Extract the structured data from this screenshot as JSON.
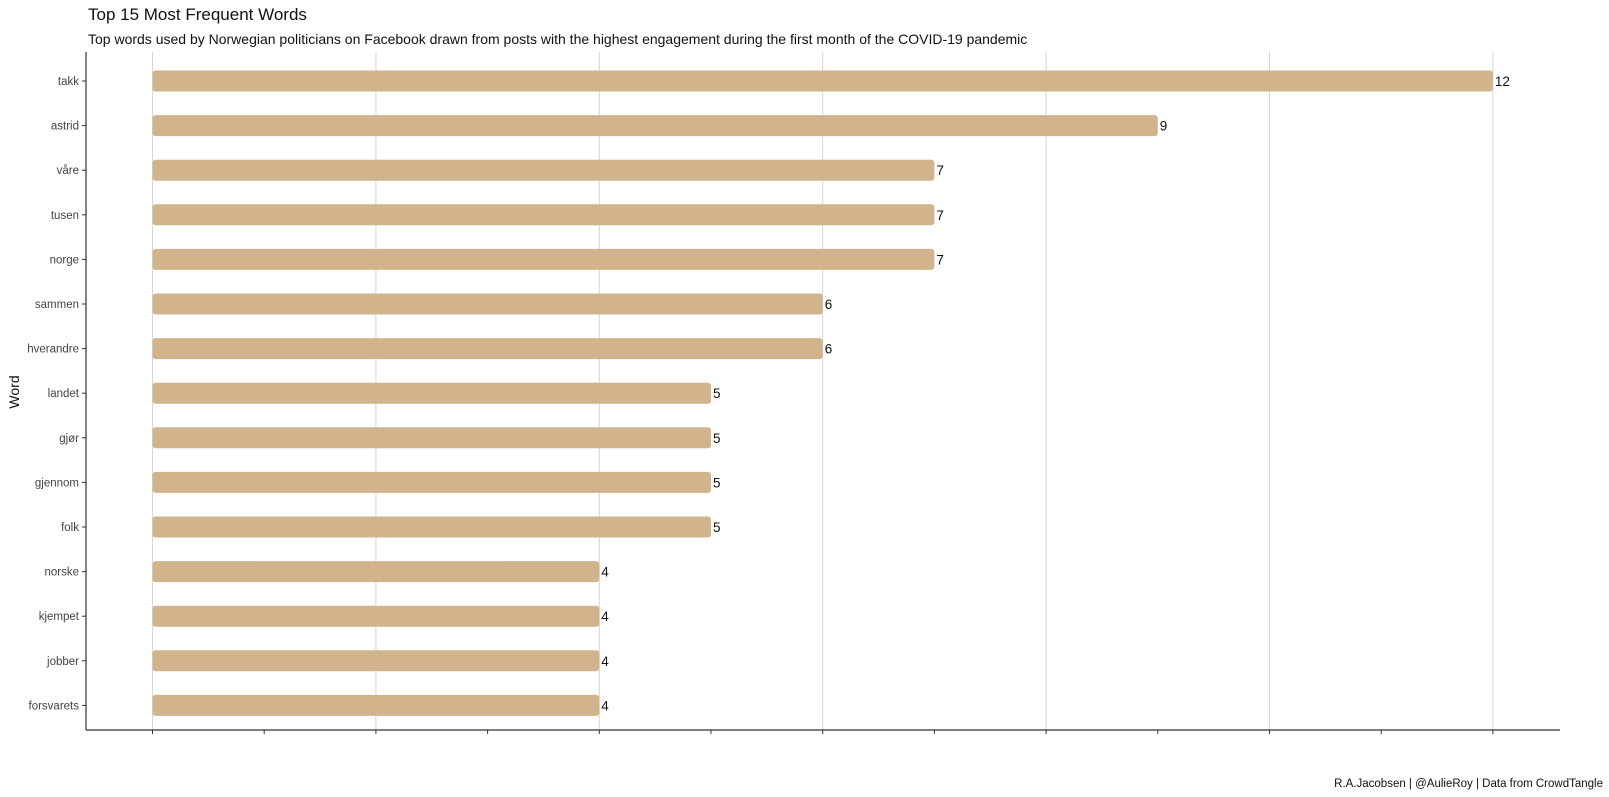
{
  "chart_data": {
    "type": "bar",
    "orientation": "horizontal",
    "title": "Top 15 Most Frequent Words",
    "subtitle": "Top words used by Norwegian politicians on Facebook drawn from posts with the highest engagement during the first month of the COVID-19 pandemic",
    "caption": "R.A.Jacobsen | @AulieRoy | Data from CrowdTangle",
    "ylabel": "Word",
    "xlabel": "",
    "categories": [
      "takk",
      "astrid",
      "våre",
      "tusen",
      "norge",
      "sammen",
      "hverandre",
      "landet",
      "gjør",
      "gjennom",
      "folk",
      "norske",
      "kjempet",
      "jobber",
      "forsvarets"
    ],
    "values": [
      12,
      9,
      7,
      7,
      7,
      6,
      6,
      5,
      5,
      5,
      5,
      4,
      4,
      4,
      4
    ],
    "xlim": [
      0,
      12
    ],
    "grid": "vertical major",
    "bar_color": "#d2b48c",
    "show_x_tick_labels": false
  }
}
